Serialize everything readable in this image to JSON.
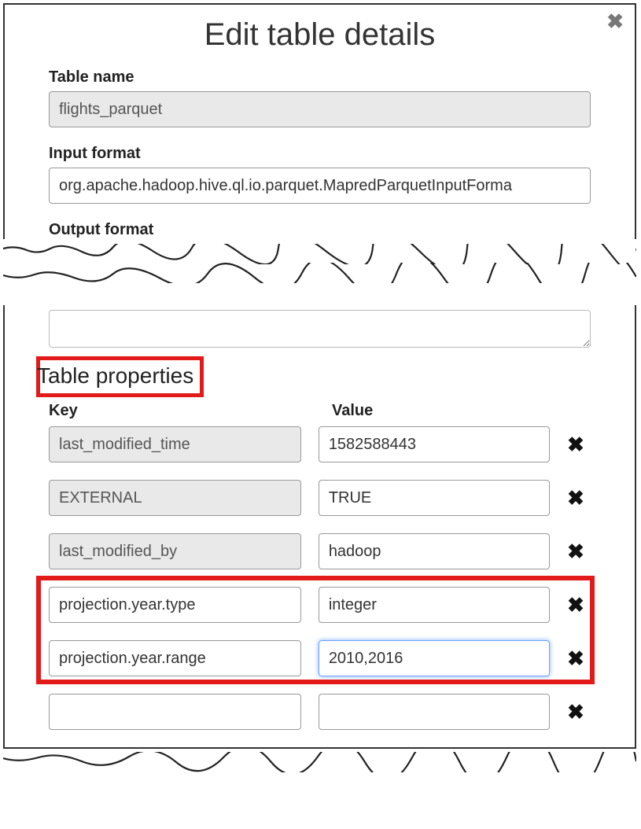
{
  "dialog": {
    "title": "Edit table details"
  },
  "fields": {
    "table_name": {
      "label": "Table name",
      "value": "flights_parquet",
      "readonly": true
    },
    "input_format": {
      "label": "Input format",
      "value": "org.apache.hadoop.hive.ql.io.parquet.MapredParquetInputForma"
    },
    "output_format": {
      "label": "Output format"
    }
  },
  "section": {
    "title": "Table properties",
    "key_header": "Key",
    "value_header": "Value"
  },
  "properties": [
    {
      "key": "last_modified_time",
      "value": "1582588443",
      "key_readonly": true
    },
    {
      "key": "EXTERNAL",
      "value": "TRUE",
      "key_readonly": true
    },
    {
      "key": "last_modified_by",
      "value": "hadoop",
      "key_readonly": true
    },
    {
      "key": "projection.year.type",
      "value": "integer",
      "key_readonly": false
    },
    {
      "key": "projection.year.range",
      "value": "2010,2016",
      "key_readonly": false,
      "value_focused": true
    },
    {
      "key": "",
      "value": "",
      "key_readonly": false
    }
  ],
  "highlights": {
    "title_box_color": "#e21a1a",
    "row_box_color": "#e21a1a",
    "row_box_start_index": 3,
    "row_box_end_index": 4
  },
  "colors": {
    "readonly_bg": "#e9e9e9",
    "border": "#999999",
    "focus_border": "#6aa3ff",
    "text": "#333333",
    "close_x": "#777777"
  }
}
